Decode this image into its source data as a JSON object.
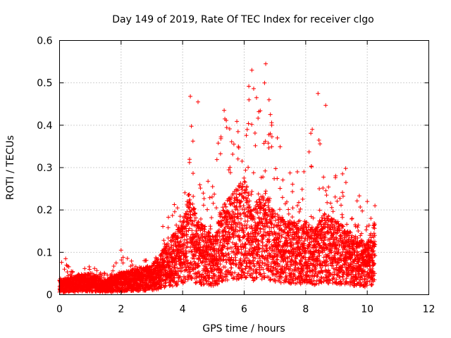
{
  "chart_data": {
    "type": "scatter",
    "title": "Day 149 of 2019, Rate Of TEC Index for receiver clgo",
    "xlabel": "GPS time / hours",
    "ylabel": "ROTI / TECUs",
    "xlim": [
      0,
      12
    ],
    "ylim": [
      0,
      0.6
    ],
    "x_ticks": [
      0,
      2,
      4,
      6,
      8,
      10,
      12
    ],
    "y_ticks": [
      0,
      0.1,
      0.2,
      0.3,
      0.4,
      0.5,
      0.6
    ],
    "x_tick_labels": [
      "0",
      "2",
      "4",
      "6",
      "8",
      "10",
      "12"
    ],
    "y_tick_labels": [
      "0",
      "0.1",
      "0.2",
      "0.3",
      "0.4",
      "0.5",
      "0.6"
    ],
    "grid": true,
    "marker": "+",
    "color": "#ff0000",
    "envelope": {
      "hours": [
        0.0,
        0.5,
        1.0,
        1.5,
        2.0,
        2.5,
        3.0,
        3.5,
        4.0,
        4.2,
        4.5,
        5.0,
        5.3,
        5.7,
        6.0,
        6.3,
        6.7,
        7.0,
        7.5,
        8.0,
        8.3,
        8.6,
        9.0,
        9.3,
        9.6,
        10.0,
        10.25
      ],
      "typical_roti": [
        0.02,
        0.025,
        0.03,
        0.02,
        0.03,
        0.035,
        0.04,
        0.07,
        0.1,
        0.14,
        0.1,
        0.08,
        0.12,
        0.14,
        0.16,
        0.12,
        0.14,
        0.11,
        0.1,
        0.1,
        0.09,
        0.11,
        0.1,
        0.09,
        0.08,
        0.07,
        0.1
      ],
      "max_roti": [
        0.09,
        0.05,
        0.07,
        0.05,
        0.1,
        0.07,
        0.1,
        0.2,
        0.25,
        0.47,
        0.32,
        0.28,
        0.44,
        0.39,
        0.49,
        0.53,
        0.55,
        0.4,
        0.3,
        0.3,
        0.47,
        0.3,
        0.28,
        0.3,
        0.25,
        0.22,
        0.21
      ]
    },
    "notable_points": [
      {
        "x": 6.7,
        "y": 0.545
      },
      {
        "x": 6.25,
        "y": 0.53
      },
      {
        "x": 6.15,
        "y": 0.492
      },
      {
        "x": 8.4,
        "y": 0.475
      },
      {
        "x": 4.25,
        "y": 0.468
      },
      {
        "x": 6.4,
        "y": 0.465
      },
      {
        "x": 8.65,
        "y": 0.447
      },
      {
        "x": 5.35,
        "y": 0.435
      },
      {
        "x": 4.5,
        "y": 0.455
      },
      {
        "x": 6.85,
        "y": 0.38
      },
      {
        "x": 5.8,
        "y": 0.385
      },
      {
        "x": 9.3,
        "y": 0.298
      },
      {
        "x": 10.0,
        "y": 0.22
      },
      {
        "x": 10.25,
        "y": 0.21
      },
      {
        "x": 2.0,
        "y": 0.105
      },
      {
        "x": 0.2,
        "y": 0.085
      }
    ]
  }
}
